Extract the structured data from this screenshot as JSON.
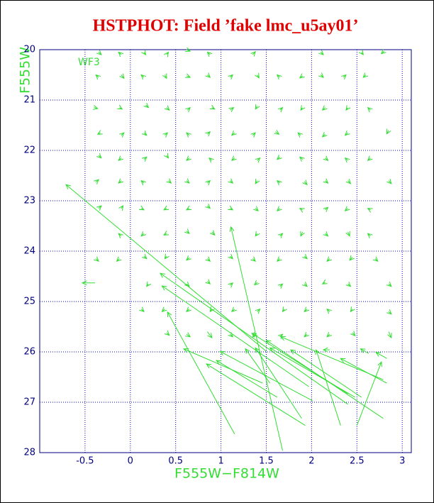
{
  "chart_data": {
    "type": "vector",
    "title": "HSTPHOT: Field ’fake lmc_u5ay01’",
    "x_label": "F555W−F814W",
    "y_label": "F555W",
    "annotation": "WF3",
    "color": "#33dd33",
    "grid": true,
    "xlim": [
      -1,
      3.1
    ],
    "ylim": [
      28,
      20
    ],
    "xticks": [
      -0.5,
      0,
      0.5,
      1,
      1.5,
      2,
      2.5,
      3
    ],
    "yticks": [
      20,
      21,
      22,
      23,
      24,
      25,
      26,
      27,
      28
    ],
    "arrows": [
      [
        -0.35,
        20.05,
        -0.32,
        20.1
      ],
      [
        -0.1,
        20.1,
        -0.13,
        20.05
      ],
      [
        0.15,
        20.05,
        0.17,
        20.1
      ],
      [
        0.4,
        20.1,
        0.42,
        20.05
      ],
      [
        0.62,
        20.0,
        0.66,
        20.03
      ],
      [
        0.88,
        20.1,
        0.85,
        20.05
      ],
      [
        1.35,
        20.1,
        1.38,
        20.04
      ],
      [
        2.1,
        20.05,
        2.13,
        20.1
      ],
      [
        2.55,
        20.05,
        2.57,
        20.1
      ],
      [
        2.8,
        20.03,
        2.77,
        20.08
      ],
      [
        -0.35,
        20.55,
        -0.38,
        20.5
      ],
      [
        -0.1,
        20.5,
        -0.07,
        20.57
      ],
      [
        0.15,
        20.55,
        0.12,
        20.5
      ],
      [
        0.38,
        20.5,
        0.4,
        20.57
      ],
      [
        0.62,
        20.52,
        0.66,
        20.55
      ],
      [
        0.85,
        20.5,
        0.88,
        20.55
      ],
      [
        1.1,
        20.55,
        1.13,
        20.5
      ],
      [
        1.4,
        20.5,
        1.42,
        20.56
      ],
      [
        1.65,
        20.55,
        1.62,
        20.5
      ],
      [
        1.9,
        20.52,
        1.87,
        20.56
      ],
      [
        2.1,
        20.5,
        2.13,
        20.55
      ],
      [
        2.35,
        20.55,
        2.38,
        20.5
      ],
      [
        2.6,
        20.5,
        2.57,
        20.55
      ],
      [
        -0.4,
        21.15,
        -0.36,
        21.17
      ],
      [
        -0.12,
        21.15,
        -0.09,
        21.18
      ],
      [
        0.17,
        21.1,
        0.2,
        21.15
      ],
      [
        0.4,
        21.15,
        0.43,
        21.2
      ],
      [
        0.63,
        21.2,
        0.66,
        21.15
      ],
      [
        0.9,
        21.15,
        0.93,
        21.18
      ],
      [
        1.1,
        21.2,
        1.14,
        21.15
      ],
      [
        1.4,
        21.12,
        1.38,
        21.18
      ],
      [
        1.65,
        21.2,
        1.68,
        21.15
      ],
      [
        1.9,
        21.15,
        1.88,
        21.2
      ],
      [
        2.15,
        21.15,
        2.12,
        21.2
      ],
      [
        2.4,
        21.15,
        2.38,
        21.2
      ],
      [
        2.65,
        21.2,
        2.62,
        21.15
      ],
      [
        -0.33,
        21.65,
        -0.36,
        21.68
      ],
      [
        -0.1,
        21.7,
        -0.07,
        21.65
      ],
      [
        0.15,
        21.65,
        0.18,
        21.7
      ],
      [
        0.38,
        21.7,
        0.41,
        21.65
      ],
      [
        0.65,
        21.7,
        0.62,
        21.65
      ],
      [
        0.85,
        21.68,
        0.88,
        21.63
      ],
      [
        1.15,
        21.65,
        1.12,
        21.7
      ],
      [
        1.35,
        21.7,
        1.38,
        21.65
      ],
      [
        1.6,
        21.63,
        1.64,
        21.68
      ],
      [
        1.88,
        21.7,
        1.85,
        21.65
      ],
      [
        2.15,
        21.68,
        2.12,
        21.73
      ],
      [
        2.4,
        21.65,
        2.37,
        21.7
      ],
      [
        2.85,
        21.6,
        2.83,
        21.67
      ],
      [
        -0.35,
        22.1,
        -0.32,
        22.15
      ],
      [
        -0.1,
        22.15,
        -0.13,
        22.2
      ],
      [
        0.15,
        22.18,
        0.18,
        22.13
      ],
      [
        0.4,
        22.1,
        0.42,
        22.15
      ],
      [
        0.65,
        22.15,
        0.62,
        22.2
      ],
      [
        0.9,
        22.2,
        0.87,
        22.15
      ],
      [
        1.15,
        22.15,
        1.12,
        22.2
      ],
      [
        1.4,
        22.2,
        1.43,
        22.15
      ],
      [
        1.65,
        22.13,
        1.62,
        22.18
      ],
      [
        1.9,
        22.18,
        1.87,
        22.13
      ],
      [
        2.15,
        22.15,
        2.18,
        22.2
      ],
      [
        2.4,
        22.2,
        2.37,
        22.15
      ],
      [
        2.65,
        22.15,
        2.62,
        22.2
      ],
      [
        -0.38,
        22.63,
        -0.35,
        22.58
      ],
      [
        -0.1,
        22.6,
        -0.13,
        22.65
      ],
      [
        0.15,
        22.65,
        0.12,
        22.6
      ],
      [
        0.42,
        22.6,
        0.45,
        22.65
      ],
      [
        0.62,
        22.6,
        0.65,
        22.65
      ],
      [
        0.85,
        22.65,
        0.88,
        22.6
      ],
      [
        1.1,
        22.6,
        1.13,
        22.65
      ],
      [
        1.4,
        22.6,
        1.38,
        22.66
      ],
      [
        1.65,
        22.65,
        1.62,
        22.6
      ],
      [
        1.92,
        22.62,
        1.95,
        22.68
      ],
      [
        2.15,
        22.6,
        2.18,
        22.65
      ],
      [
        2.4,
        22.6,
        2.43,
        22.66
      ],
      [
        2.85,
        22.6,
        2.88,
        22.66
      ],
      [
        -0.35,
        23.15,
        -0.32,
        23.1
      ],
      [
        -0.1,
        23.15,
        -0.08,
        23.1
      ],
      [
        0.12,
        23.15,
        0.15,
        23.18
      ],
      [
        0.4,
        23.15,
        0.37,
        23.18
      ],
      [
        0.65,
        23.15,
        0.62,
        23.18
      ],
      [
        0.85,
        23.1,
        0.88,
        23.15
      ],
      [
        1.1,
        23.15,
        1.13,
        23.18
      ],
      [
        1.38,
        23.15,
        1.41,
        23.2
      ],
      [
        1.65,
        23.15,
        1.62,
        23.2
      ],
      [
        1.9,
        23.18,
        1.87,
        23.15
      ],
      [
        2.15,
        23.18,
        2.18,
        23.13
      ],
      [
        2.4,
        23.15,
        2.37,
        23.2
      ],
      [
        2.65,
        23.18,
        2.62,
        23.15
      ],
      [
        -0.1,
        23.7,
        -0.13,
        23.65
      ],
      [
        0.15,
        23.65,
        0.12,
        23.7
      ],
      [
        0.4,
        23.65,
        0.37,
        23.68
      ],
      [
        0.62,
        23.6,
        0.65,
        23.65
      ],
      [
        0.9,
        23.62,
        0.93,
        23.68
      ],
      [
        1.4,
        23.65,
        1.38,
        23.7
      ],
      [
        1.65,
        23.7,
        1.68,
        23.65
      ],
      [
        1.9,
        23.62,
        1.88,
        23.7
      ],
      [
        2.15,
        23.65,
        2.18,
        23.7
      ],
      [
        2.4,
        23.62,
        2.42,
        23.7
      ],
      [
        2.65,
        23.7,
        2.62,
        23.65
      ],
      [
        -0.38,
        24.15,
        -0.35,
        24.2
      ],
      [
        -0.12,
        24.15,
        -0.15,
        24.2
      ],
      [
        0.15,
        24.1,
        0.18,
        24.15
      ],
      [
        0.4,
        24.1,
        0.38,
        24.15
      ],
      [
        0.65,
        24.13,
        0.62,
        24.18
      ],
      [
        0.85,
        24.15,
        0.88,
        24.2
      ],
      [
        1.1,
        24.1,
        1.13,
        24.15
      ],
      [
        1.35,
        24.15,
        1.38,
        24.2
      ],
      [
        1.65,
        24.15,
        1.62,
        24.2
      ],
      [
        1.92,
        24.1,
        1.95,
        24.15
      ],
      [
        2.2,
        24.15,
        2.17,
        24.2
      ],
      [
        2.45,
        24.12,
        2.42,
        24.18
      ],
      [
        2.7,
        24.15,
        2.73,
        24.2
      ],
      [
        0.2,
        24.65,
        0.18,
        24.7
      ],
      [
        0.62,
        24.65,
        0.65,
        24.7
      ],
      [
        0.85,
        24.6,
        0.88,
        24.65
      ],
      [
        1.1,
        24.68,
        1.13,
        24.63
      ],
      [
        1.4,
        24.62,
        1.37,
        24.67
      ],
      [
        1.65,
        24.7,
        1.68,
        24.65
      ],
      [
        1.92,
        24.65,
        1.95,
        24.7
      ],
      [
        2.15,
        24.62,
        2.12,
        24.65
      ],
      [
        2.4,
        24.65,
        2.43,
        24.7
      ],
      [
        2.85,
        24.65,
        2.88,
        24.7
      ],
      [
        0.12,
        25.15,
        0.15,
        25.2
      ],
      [
        0.38,
        25.15,
        0.35,
        25.2
      ],
      [
        0.65,
        25.15,
        0.62,
        25.2
      ],
      [
        0.9,
        25.15,
        0.88,
        25.2
      ],
      [
        1.15,
        25.15,
        1.12,
        25.2
      ],
      [
        1.4,
        25.2,
        1.43,
        25.15
      ],
      [
        1.7,
        25.15,
        1.68,
        25.2
      ],
      [
        1.95,
        25.15,
        1.92,
        25.2
      ],
      [
        2.2,
        25.2,
        2.17,
        25.15
      ],
      [
        2.45,
        25.15,
        2.43,
        25.2
      ],
      [
        2.85,
        25.2,
        2.88,
        25.25
      ],
      [
        0.4,
        25.62,
        0.43,
        25.67
      ],
      [
        0.62,
        25.65,
        0.66,
        25.7
      ],
      [
        0.85,
        25.6,
        0.9,
        25.72
      ],
      [
        1.1,
        25.65,
        1.13,
        25.7
      ],
      [
        1.38,
        25.65,
        1.35,
        25.7
      ],
      [
        1.65,
        25.7,
        1.68,
        25.65
      ],
      [
        1.95,
        25.65,
        1.92,
        25.7
      ],
      [
        2.2,
        25.65,
        2.17,
        25.7
      ],
      [
        2.45,
        25.62,
        2.48,
        25.68
      ],
      [
        2.85,
        25.6,
        2.88,
        25.72
      ],
      [
        1.5,
        25.99,
        -0.71,
        22.68
      ],
      [
        -0.39,
        24.63,
        -0.53,
        24.63
      ],
      [
        2.4,
        27.04,
        0.33,
        24.44
      ],
      [
        1.97,
        26.69,
        0.35,
        24.69
      ],
      [
        1.15,
        27.63,
        0.41,
        25.21
      ],
      [
        1.46,
        26.62,
        0.59,
        25.94
      ],
      [
        1.68,
        27.96,
        1.11,
        23.52
      ],
      [
        1.93,
        27.46,
        0.84,
        26.24
      ],
      [
        1.62,
        26.9,
        0.95,
        26.17
      ],
      [
        2.01,
        26.97,
        0.99,
        25.99
      ],
      [
        2.4,
        26.83,
        1.34,
        25.63
      ],
      [
        1.89,
        27.32,
        1.38,
        25.92
      ],
      [
        1.54,
        26.62,
        1.27,
        25.94
      ],
      [
        2.79,
        27.32,
        1.5,
        25.77
      ],
      [
        2.79,
        26.55,
        1.66,
        25.7
      ],
      [
        2.48,
        26.9,
        1.54,
        25.92
      ],
      [
        2.55,
        26.9,
        1.77,
        25.96
      ],
      [
        2.32,
        27.46,
        2.05,
        25.96
      ],
      [
        2.83,
        26.62,
        2.32,
        26.13
      ],
      [
        2.5,
        27.46,
        2.77,
        26.2
      ],
      [
        2.2,
        25.96,
        2.13,
        25.96
      ],
      [
        2.63,
        26.03,
        2.54,
        25.94
      ],
      [
        2.83,
        26.13,
        2.71,
        26.01
      ]
    ]
  }
}
